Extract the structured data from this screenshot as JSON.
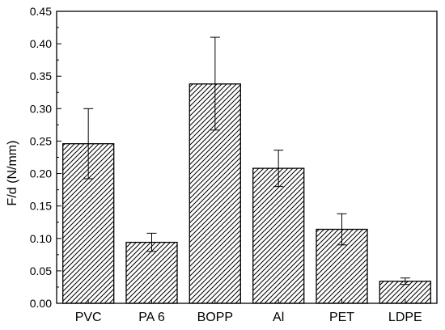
{
  "chart_data": {
    "type": "bar",
    "title": "",
    "xlabel": "",
    "ylabel": "F/d (N/mm)",
    "categories": [
      "PVC",
      "PA 6",
      "BOPP",
      "Al",
      "PET",
      "LDPE"
    ],
    "values": [
      0.246,
      0.094,
      0.338,
      0.208,
      0.114,
      0.034
    ],
    "error_low": [
      0.192,
      0.08,
      0.267,
      0.18,
      0.09,
      0.029
    ],
    "error_high": [
      0.3,
      0.108,
      0.41,
      0.236,
      0.138,
      0.039
    ],
    "ylim": [
      0,
      0.45
    ],
    "yticks": [
      "0.00",
      "0.05",
      "0.10",
      "0.15",
      "0.20",
      "0.25",
      "0.30",
      "0.35",
      "0.40",
      "0.45"
    ],
    "ytick_values": [
      0,
      0.05,
      0.1,
      0.15,
      0.2,
      0.25,
      0.3,
      0.35,
      0.4,
      0.45
    ],
    "bar_fill": "hatched",
    "bar_color": "#000000",
    "grid": false,
    "legend": "none"
  }
}
